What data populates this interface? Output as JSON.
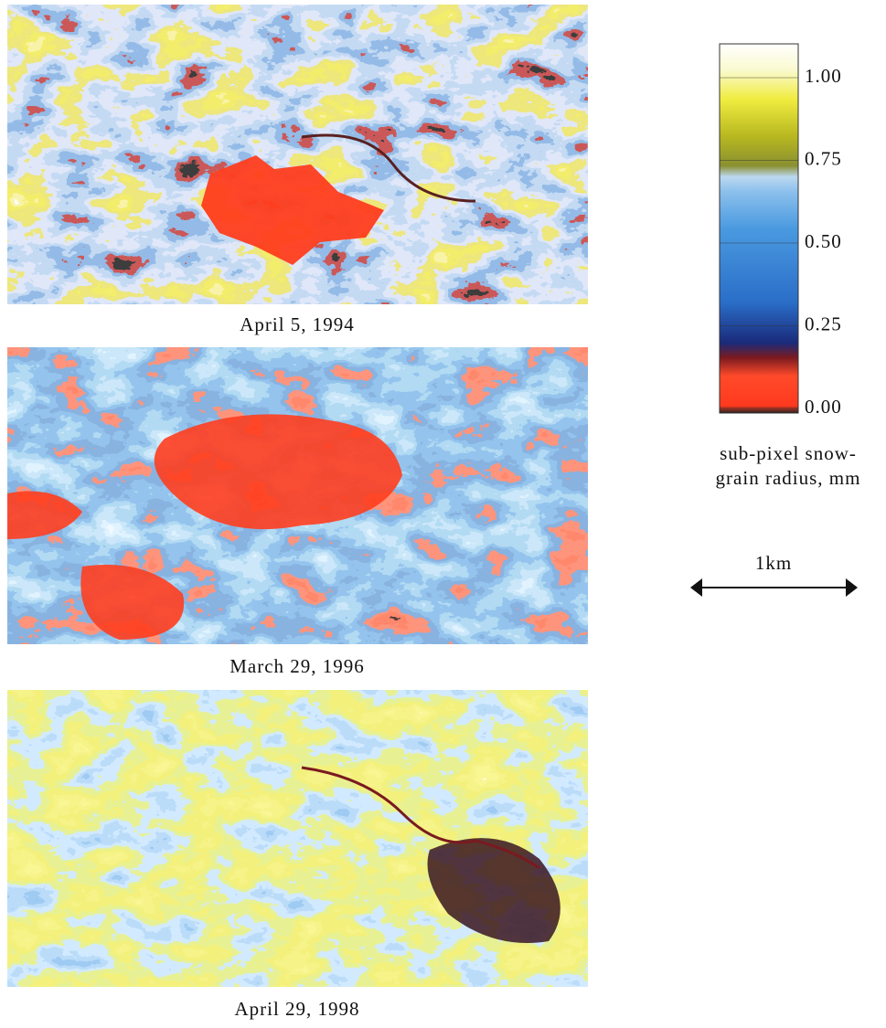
{
  "panels": [
    {
      "caption": "April 5, 1994"
    },
    {
      "caption": "March 29, 1996"
    },
    {
      "caption": "April 29, 1998"
    }
  ],
  "colorbar": {
    "ticks": [
      {
        "value": 1,
        "label": "1.00"
      },
      {
        "value": 0.75,
        "label": "0.75"
      },
      {
        "value": 0.5,
        "label": "0.50"
      },
      {
        "value": 0.25,
        "label": "0.25"
      },
      {
        "value": 0,
        "label": "0.00"
      }
    ],
    "label": [
      "sub-pixel snow-",
      "grain radius, mm"
    ]
  },
  "scale_bar": {
    "label": "1km"
  }
}
